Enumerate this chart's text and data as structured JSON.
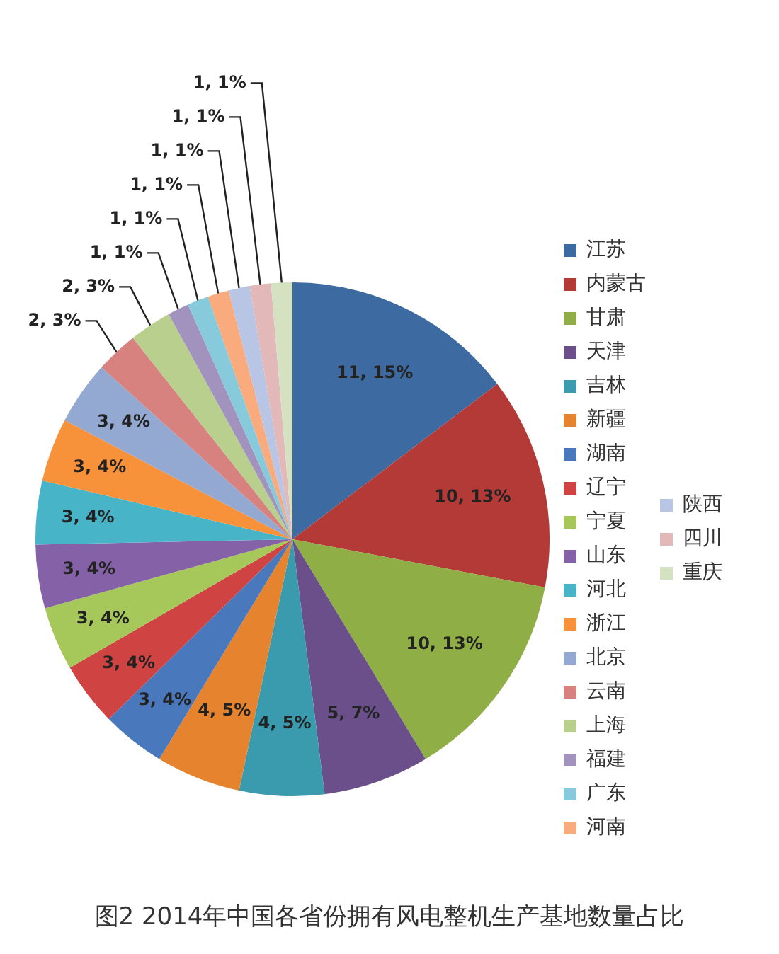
{
  "chart_data": {
    "type": "pie",
    "title": "图2 2014年中国各省份拥有风电整机生产基地数量占比",
    "categories": [
      "江苏",
      "内蒙古",
      "甘肃",
      "天津",
      "吉林",
      "新疆",
      "湖南",
      "辽宁",
      "宁夏",
      "山东",
      "河北",
      "浙江",
      "北京",
      "云南",
      "上海",
      "福建",
      "广东",
      "河南",
      "陕西",
      "四川",
      "重庆"
    ],
    "values": [
      11,
      10,
      10,
      5,
      4,
      4,
      3,
      3,
      3,
      3,
      3,
      3,
      3,
      2,
      2,
      1,
      1,
      1,
      1,
      1,
      1
    ],
    "colors": [
      "#3d6aa0",
      "#b33a36",
      "#8fae46",
      "#6a4f8a",
      "#3a9aae",
      "#e6832e",
      "#4a78bd",
      "#d04343",
      "#a6c85a",
      "#8562a8",
      "#48b4c8",
      "#f7923a",
      "#93a9d2",
      "#d88280",
      "#b8cf8e",
      "#a193be",
      "#86cadb",
      "#f9ab7e",
      "#b9c5e4",
      "#e2b8b8",
      "#d4e2c2"
    ],
    "value_labels": [
      "11, 15%",
      "10, 13%",
      "10, 13%",
      "5, 7%",
      "4, 5%",
      "4, 5%",
      "3, 4%",
      "3, 4%",
      "3, 4%",
      "3, 4%",
      "3, 4%",
      "3, 4%",
      "3, 4%",
      "2, 3%",
      "2, 3%",
      "1, 1%",
      "1, 1%",
      "1, 1%",
      "1, 1%",
      "1, 1%",
      "1, 1%"
    ],
    "legend": "right"
  }
}
